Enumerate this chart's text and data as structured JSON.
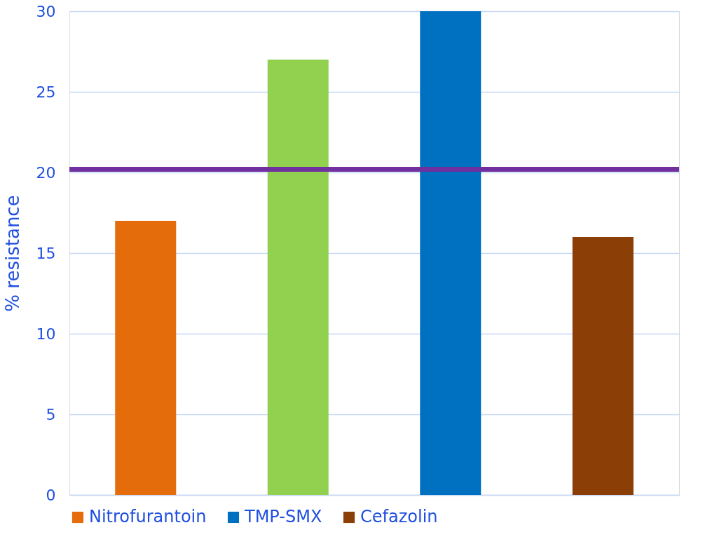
{
  "chart_data": {
    "type": "bar",
    "ylabel": "% resistance",
    "categories": [
      null
    ],
    "series": [
      {
        "name": "Nitrofurantoin",
        "color": "#e46c0a",
        "values": [
          17
        ]
      },
      {
        "color": "#92d050",
        "values": [
          27
        ]
      },
      {
        "name": "TMP-SMX",
        "color": "#0070c0",
        "values": [
          30
        ]
      },
      {
        "name": "Cefazolin",
        "color": "#8b3f06",
        "values": [
          16
        ]
      }
    ],
    "ylim": [
      0,
      30
    ],
    "yticks": [
      0,
      5,
      10,
      15,
      20,
      25,
      30
    ],
    "grid": "y",
    "legend": "bottom",
    "ref_lines": [
      {
        "axis": "y",
        "value": 20.2,
        "color": "#7030a0"
      }
    ]
  }
}
